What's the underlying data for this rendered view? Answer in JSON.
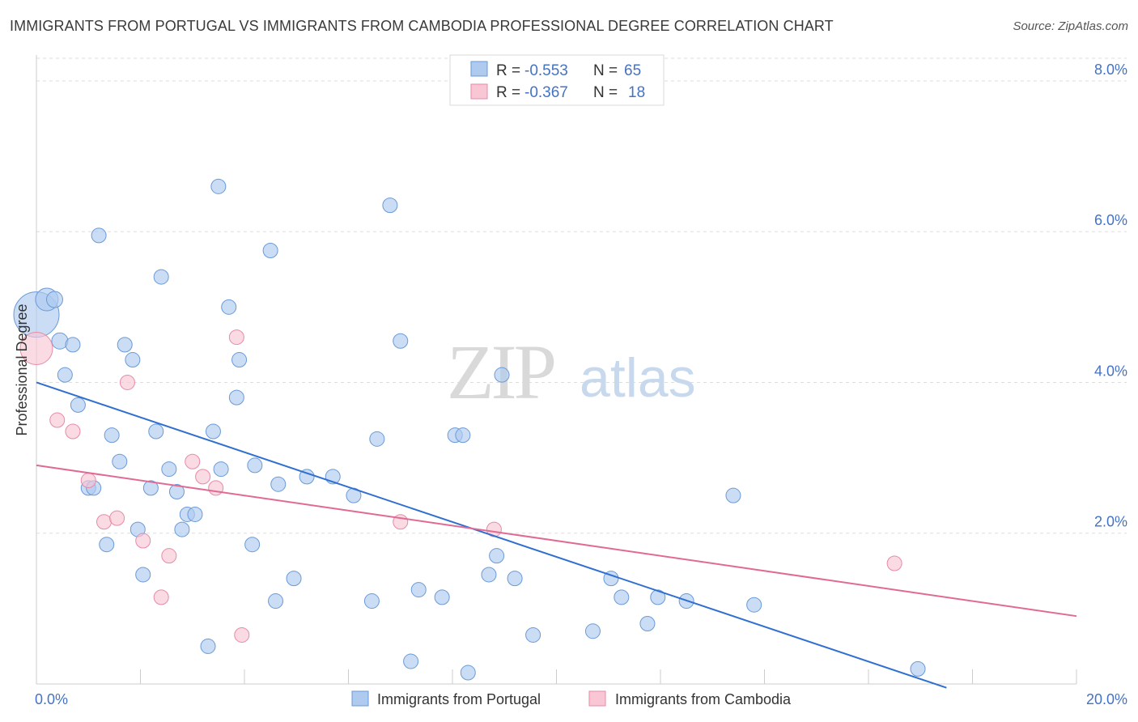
{
  "title": "IMMIGRANTS FROM PORTUGAL VS IMMIGRANTS FROM CAMBODIA PROFESSIONAL DEGREE CORRELATION CHART",
  "source": "Source: ZipAtlas.com",
  "watermark": {
    "zip": "ZIP",
    "atlas": "atlas"
  },
  "colors": {
    "portugal_fill": "#aecbef",
    "portugal_stroke": "#6a9ad8",
    "portugal_line": "#2f6fd0",
    "cambodia_fill": "#f8c6d4",
    "cambodia_stroke": "#e88aa6",
    "cambodia_line": "#e06a94",
    "grid": "#dddddd",
    "axis_text": "#4472c4"
  },
  "stats_box": {
    "rows": [
      {
        "r_label": "R =",
        "r_value": "-0.553",
        "n_label": "N =",
        "n_value": "65"
      },
      {
        "r_label": "R =",
        "r_value": "-0.367",
        "n_label": "N =",
        "n_value": "18"
      }
    ]
  },
  "chart_data": {
    "type": "scatter",
    "title": "IMMIGRANTS FROM PORTUGAL VS IMMIGRANTS FROM CAMBODIA PROFESSIONAL DEGREE CORRELATION CHART",
    "xlabel": "",
    "ylabel": "Professional Degree",
    "xlim": [
      0,
      20
    ],
    "ylim": [
      0,
      8.3
    ],
    "x_tick_labels": [
      "0.0%",
      "20.0%"
    ],
    "y_ticks": [
      2,
      4,
      6,
      8
    ],
    "y_tick_labels": [
      "2.0%",
      "4.0%",
      "6.0%",
      "8.0%"
    ],
    "grid": true,
    "legend_position": "bottom",
    "series": [
      {
        "name": "Immigrants from Portugal",
        "points": [
          [
            0.0,
            4.9,
            28
          ],
          [
            0.2,
            5.1,
            14
          ],
          [
            0.35,
            5.1,
            10
          ],
          [
            0.45,
            4.55,
            10
          ],
          [
            0.7,
            4.5,
            9
          ],
          [
            0.55,
            4.1,
            9
          ],
          [
            0.8,
            3.7,
            9
          ],
          [
            1.2,
            5.95,
            9
          ],
          [
            1.0,
            2.6,
            9
          ],
          [
            1.1,
            2.6,
            9
          ],
          [
            1.45,
            3.3,
            9
          ],
          [
            1.6,
            2.95,
            9
          ],
          [
            1.7,
            4.5,
            9
          ],
          [
            1.85,
            4.3,
            9
          ],
          [
            1.35,
            1.85,
            9
          ],
          [
            1.95,
            2.05,
            9
          ],
          [
            2.05,
            1.45,
            9
          ],
          [
            2.2,
            2.6,
            9
          ],
          [
            2.3,
            3.35,
            9
          ],
          [
            2.4,
            5.4,
            9
          ],
          [
            2.55,
            2.85,
            9
          ],
          [
            2.7,
            2.55,
            9
          ],
          [
            2.8,
            2.05,
            9
          ],
          [
            2.9,
            2.25,
            9
          ],
          [
            3.05,
            2.25,
            9
          ],
          [
            3.3,
            0.5,
            9
          ],
          [
            3.4,
            3.35,
            9
          ],
          [
            3.5,
            6.6,
            9
          ],
          [
            3.55,
            2.85,
            9
          ],
          [
            3.7,
            5.0,
            9
          ],
          [
            3.85,
            3.8,
            9
          ],
          [
            3.9,
            4.3,
            9
          ],
          [
            4.15,
            1.85,
            9
          ],
          [
            4.2,
            2.9,
            9
          ],
          [
            4.5,
            5.75,
            9
          ],
          [
            4.65,
            2.65,
            9
          ],
          [
            4.6,
            1.1,
            9
          ],
          [
            4.95,
            1.4,
            9
          ],
          [
            5.2,
            2.75,
            9
          ],
          [
            5.7,
            2.75,
            9
          ],
          [
            6.1,
            2.5,
            9
          ],
          [
            6.45,
            1.1,
            9
          ],
          [
            6.55,
            3.25,
            9
          ],
          [
            6.8,
            6.35,
            9
          ],
          [
            7.0,
            4.55,
            9
          ],
          [
            7.2,
            0.3,
            9
          ],
          [
            7.35,
            1.25,
            9
          ],
          [
            7.8,
            1.15,
            9
          ],
          [
            8.05,
            3.3,
            9
          ],
          [
            8.2,
            3.3,
            9
          ],
          [
            8.3,
            0.15,
            9
          ],
          [
            8.7,
            1.45,
            9
          ],
          [
            8.85,
            1.7,
            9
          ],
          [
            8.95,
            4.1,
            9
          ],
          [
            9.2,
            1.4,
            9
          ],
          [
            9.55,
            0.65,
            9
          ],
          [
            10.7,
            0.7,
            9
          ],
          [
            11.05,
            1.4,
            9
          ],
          [
            11.25,
            1.15,
            9
          ],
          [
            11.75,
            0.8,
            9
          ],
          [
            11.95,
            1.15,
            9
          ],
          [
            12.5,
            1.1,
            9
          ],
          [
            13.4,
            2.5,
            9
          ],
          [
            13.8,
            1.05,
            9
          ],
          [
            16.95,
            0.2,
            9
          ]
        ],
        "trend": {
          "x": [
            0,
            17.5
          ],
          "y": [
            4.0,
            -0.05
          ]
        }
      },
      {
        "name": "Immigrants from Cambodia",
        "points": [
          [
            0.0,
            4.45,
            20
          ],
          [
            0.4,
            3.5,
            9
          ],
          [
            0.7,
            3.35,
            9
          ],
          [
            1.0,
            2.7,
            9
          ],
          [
            1.3,
            2.15,
            9
          ],
          [
            1.55,
            2.2,
            9
          ],
          [
            1.75,
            4.0,
            9
          ],
          [
            2.05,
            1.9,
            9
          ],
          [
            2.4,
            1.15,
            9
          ],
          [
            2.55,
            1.7,
            9
          ],
          [
            3.0,
            2.95,
            9
          ],
          [
            3.2,
            2.75,
            9
          ],
          [
            3.45,
            2.6,
            9
          ],
          [
            3.85,
            4.6,
            9
          ],
          [
            3.95,
            0.65,
            9
          ],
          [
            7.0,
            2.15,
            9
          ],
          [
            8.8,
            2.05,
            9
          ],
          [
            16.5,
            1.6,
            9
          ]
        ],
        "trend": {
          "x": [
            0,
            20
          ],
          "y": [
            2.9,
            0.9
          ]
        }
      }
    ]
  }
}
